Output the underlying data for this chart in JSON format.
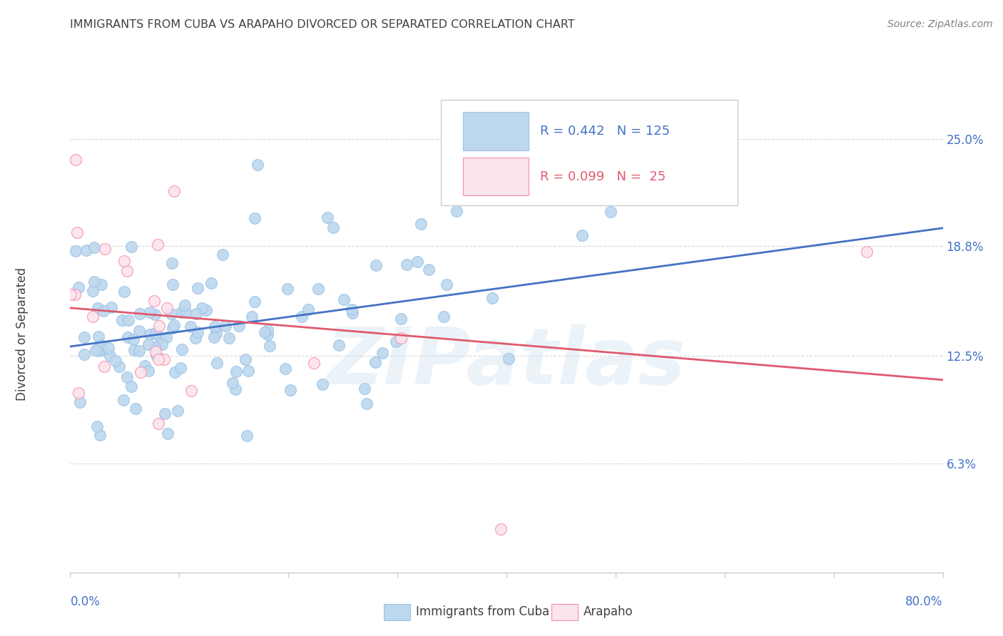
{
  "title": "IMMIGRANTS FROM CUBA VS ARAPAHO DIVORCED OR SEPARATED CORRELATION CHART",
  "source": "Source: ZipAtlas.com",
  "ylabel": "Divorced or Separated",
  "ytick_labels": [
    "6.3%",
    "12.5%",
    "18.8%",
    "25.0%"
  ],
  "ytick_values": [
    0.063,
    0.125,
    0.188,
    0.25
  ],
  "xlim": [
    0.0,
    0.8
  ],
  "ylim": [
    0.0,
    0.275
  ],
  "blue_R": 0.442,
  "blue_N": 125,
  "pink_R": 0.099,
  "pink_N": 25,
  "blue_color": "#bdd7ee",
  "blue_edge_color": "#9dc3e6",
  "blue_line_color": "#4472c4",
  "pink_color": "#fce4ec",
  "pink_edge_color": "#f48fb1",
  "pink_line_color": "#e05a6e",
  "legend_label_blue": "Immigrants from Cuba",
  "legend_label_pink": "Arapaho",
  "watermark": "ZIPatlas",
  "background_color": "#ffffff",
  "grid_color": "#d9d9d9",
  "axis_color": "#4472c4",
  "title_color": "#404040",
  "source_color": "#808080"
}
